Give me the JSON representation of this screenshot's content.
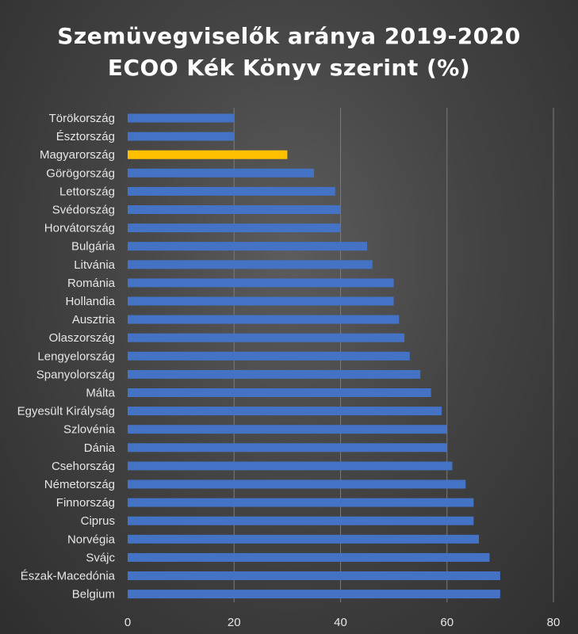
{
  "chart_data": {
    "type": "bar",
    "orientation": "horizontal",
    "title_lines": [
      "Szemüvegviselők aránya 2019-2020",
      "ECOO Kék Könyv szerint (%)"
    ],
    "categories": [
      "Törökország",
      "Észtország",
      "Magyarország",
      "Görögország",
      "Lettország",
      "Svédország",
      "Horvátország",
      "Bulgária",
      "Litvánia",
      "Románia",
      "Hollandia",
      "Ausztria",
      "Olaszország",
      "Lengyelország",
      "Spanyolország",
      "Málta",
      "Egyesült Királyság",
      "Szlovénia",
      "Dánia",
      "Csehország",
      "Németország",
      "Finnország",
      "Ciprus",
      "Norvégia",
      "Svájc",
      "Észak-Macedónia",
      "Belgium"
    ],
    "values": [
      20,
      20,
      30,
      35,
      39,
      40,
      40,
      45,
      46,
      50,
      50,
      51,
      52,
      53,
      55,
      57,
      59,
      60,
      60,
      61,
      63.5,
      65,
      65,
      66,
      68,
      70,
      70
    ],
    "highlight": "Magyarország",
    "xlim": [
      0,
      80
    ],
    "xticks": [
      0,
      20,
      40,
      60,
      80
    ],
    "xlabel": "",
    "ylabel": "",
    "grid": true,
    "legend": "none",
    "colors": {
      "bar": "#4472C4",
      "highlight": "#FFC000",
      "background": "#404040",
      "text": "#E6E6E6",
      "grid": "#7A7A7A"
    }
  }
}
